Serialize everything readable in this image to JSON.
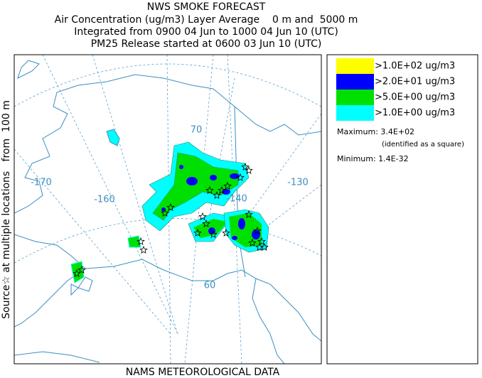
{
  "header": {
    "title": "NWS SMOKE FORECAST",
    "lines": [
      "Air Concentration (ug/m3) Layer Average    0 m and  5000 m",
      "Integrated from 0900 04 Jun to 1000 04 Jun 10 (UTC)",
      "PM25 Release started at 0600 03 Jun 10 (UTC)"
    ]
  },
  "legend": {
    "entries": [
      {
        "label": ">1.0E+02 ug/m3",
        "color": "#ffff00"
      },
      {
        "label": ">2.0E+01 ug/m3",
        "color": "#0000ff"
      },
      {
        "label": ">5.0E+00 ug/m3",
        "color": "#00e000"
      },
      {
        "label": ">1.0E+00 ug/m3",
        "color": "#00ffff"
      }
    ],
    "maximum": "Maximum: 3.4E+02",
    "max_note": "(identified as a square)",
    "minimum": "Minimum: 1.4E-32"
  },
  "map": {
    "side_label": "Source☆ at multiple locations   from  100 m",
    "footer": "NAMS METEOROLOGICAL DATA",
    "grid_labels": [
      "-170",
      "-160",
      "-140",
      "-130",
      "70",
      "60"
    ]
  }
}
